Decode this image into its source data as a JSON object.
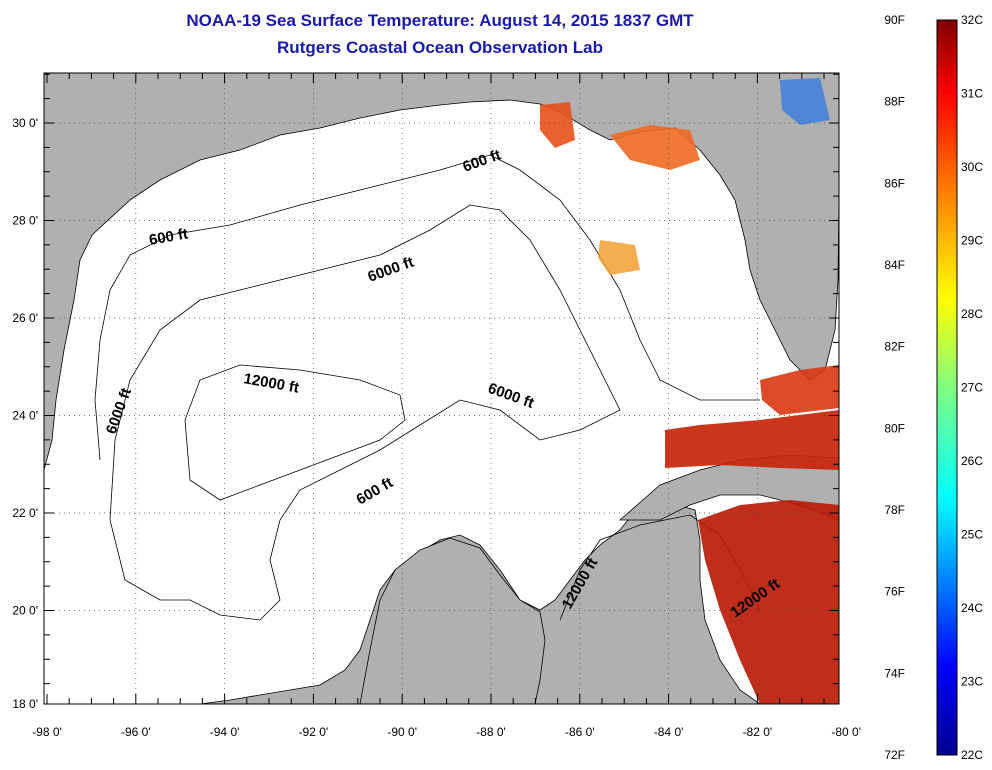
{
  "title": "NOAA-19 Sea Surface Temperature:  August 14, 2015 1837 GMT",
  "subtitle": "Rutgers Coastal Ocean Observation Lab",
  "longitude_labels": [
    "-98 0'",
    "-96 0'",
    "-94 0'",
    "-92 0'",
    "-90 0'",
    "-88 0'",
    "-86 0'",
    "-84 0'",
    "-82 0'",
    "-80 0'"
  ],
  "latitude_labels": [
    "30 0'",
    "28 0'",
    "26 0'",
    "24 0'",
    "22 0'",
    "20 0'",
    "18 0'"
  ],
  "contour_labels": [
    "600 ft",
    "600 ft",
    "6000 ft",
    "6000 ft",
    "12000 ft",
    "6000 ft",
    "600 ft",
    "12000 ft",
    "12000 ft"
  ],
  "colorbar": {
    "fahrenheit_labels": [
      "90F",
      "88F",
      "86F",
      "84F",
      "82F",
      "80F",
      "78F",
      "76F",
      "74F",
      "72F"
    ],
    "celsius_labels": [
      "32C",
      "31C",
      "30C",
      "29C",
      "28C",
      "27C",
      "26C",
      "25C",
      "24C",
      "23C",
      "22C"
    ]
  },
  "colors": {
    "title": "#1a1aa8",
    "land": "#b0b0b0",
    "ocean": "#ffffff",
    "sst_hot": "#c8250a",
    "sst_warm": "#e8501a"
  }
}
